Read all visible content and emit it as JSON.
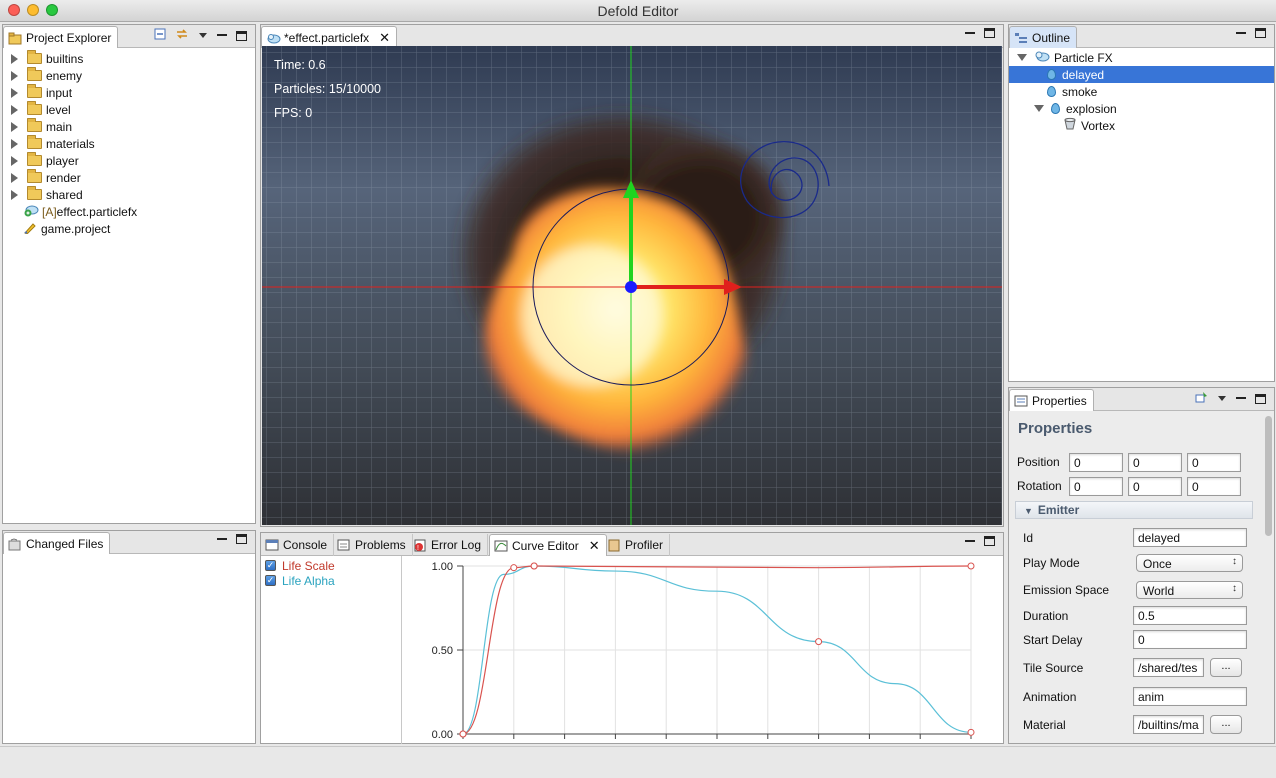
{
  "window": {
    "title": "Defold Editor"
  },
  "project_explorer": {
    "tab_label": "Project Explorer",
    "folders": [
      {
        "label": "builtins"
      },
      {
        "label": "enemy"
      },
      {
        "label": "input"
      },
      {
        "label": "level"
      },
      {
        "label": "main"
      },
      {
        "label": "materials"
      },
      {
        "label": "player"
      },
      {
        "label": "render"
      },
      {
        "label": "shared"
      }
    ],
    "files": [
      {
        "prefix": "[A]",
        "label": "effect.particlefx"
      },
      {
        "prefix": "",
        "label": "game.project"
      }
    ]
  },
  "changed_files": {
    "tab_label": "Changed Files"
  },
  "editor": {
    "tab_label": "*effect.particlefx",
    "hud": {
      "time": "Time: 0.6",
      "particles": "Particles: 15/10000",
      "fps": "FPS: 0"
    }
  },
  "bottom_panel": {
    "tabs": [
      {
        "label": "Console"
      },
      {
        "label": "Problems"
      },
      {
        "label": "Error Log"
      },
      {
        "label": "Curve Editor"
      },
      {
        "label": "Profiler"
      }
    ]
  },
  "chart_data": {
    "type": "line",
    "title": "",
    "xlabel": "",
    "ylabel": "",
    "xlim": [
      0,
      1
    ],
    "ylim": [
      0,
      1
    ],
    "y_ticks": [
      "0.00",
      "0.50",
      "1.00"
    ],
    "legend": [
      {
        "name": "Life Scale",
        "checked": true,
        "color": "#c0392b"
      },
      {
        "name": "Life Alpha",
        "checked": true,
        "color": "#2aa3bf"
      }
    ],
    "series": [
      {
        "name": "Life Scale",
        "color": "#d9534f",
        "x": [
          0,
          0.1,
          0.14,
          0.7,
          1.0
        ],
        "y": [
          0,
          0.99,
          1.0,
          0.99,
          1.0
        ],
        "key_points": [
          0,
          1,
          2,
          4
        ]
      },
      {
        "name": "Life Alpha",
        "color": "#5bc0d7",
        "x": [
          0,
          0.08,
          0.14,
          0.3,
          0.5,
          0.7,
          0.85,
          1.0
        ],
        "y": [
          0,
          0.95,
          1.0,
          0.97,
          0.85,
          0.55,
          0.3,
          0.01
        ],
        "key_points": [
          0,
          2,
          5,
          7
        ]
      }
    ]
  },
  "outline": {
    "tab_label": "Outline",
    "items": [
      {
        "label": "Particle FX"
      },
      {
        "label": "delayed"
      },
      {
        "label": "smoke"
      },
      {
        "label": "explosion"
      },
      {
        "label": "Vortex"
      }
    ]
  },
  "properties": {
    "tab_label": "Properties",
    "heading": "Properties",
    "position_label": "Position",
    "position": [
      "0",
      "0",
      "0"
    ],
    "rotation_label": "Rotation",
    "rotation": [
      "0",
      "0",
      "0"
    ],
    "section": "Emitter",
    "fields": {
      "id": {
        "label": "Id",
        "value": "delayed"
      },
      "play_mode": {
        "label": "Play Mode",
        "value": "Once"
      },
      "emission_space": {
        "label": "Emission Space",
        "value": "World"
      },
      "duration": {
        "label": "Duration",
        "value": "0.5"
      },
      "start_delay": {
        "label": "Start Delay",
        "value": "0"
      },
      "tile_source": {
        "label": "Tile Source",
        "value": "/shared/tes",
        "button": "..."
      },
      "animation": {
        "label": "Animation",
        "value": "anim"
      },
      "material": {
        "label": "Material",
        "value": "/builtins/ma",
        "button": "..."
      }
    }
  },
  "colors": {
    "selection": "#3875d7",
    "accent_x": "#e0201c",
    "accent_y": "#1fd41f",
    "accent_z": "#1a1aff"
  }
}
